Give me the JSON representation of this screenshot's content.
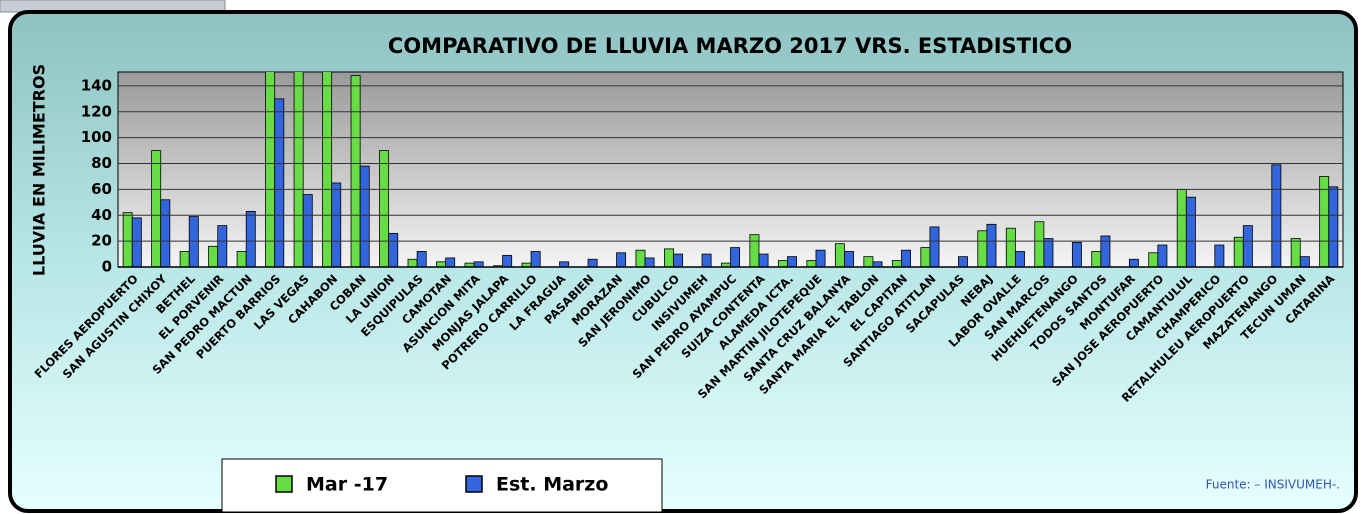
{
  "chart_data": {
    "type": "bar",
    "title": "COMPARATIVO DE LLUVIA MARZO 2017 VRS. ESTADISTICO",
    "y_label": "LLUVIA EN MILIMETROS",
    "source": "Fuente: – INSIVUMEH-.",
    "categories": [
      "FLORES AEROPUERTO",
      "SAN AGUSTIN CHIXOY",
      "BETHEL",
      "EL PORVENIR",
      "SAN PEDRO MACTUN",
      "PUERTO BARRIOS",
      "LAS VEGAS",
      "CAHABON",
      "COBAN",
      "LA UNION",
      "ESQUIPULAS",
      "CAMOTAN",
      "ASUNCION MITA",
      "MONJAS JALAPA",
      "POTRERO CARRILLO",
      "LA FRAGUA",
      "PASABIEN",
      "MORAZAN",
      "SAN JERONIMO",
      "CUBULCO",
      "INSIVUMEH",
      "SAN PEDRO AYAMPUC",
      "SUIZA CONTENTA",
      "ALAMEDA ICTA.",
      "SAN MARTIN JILOTEPEQUE",
      "SANTA CRUZ BALANYA",
      "SANTA MARIA EL TABLON",
      "EL CAPITAN",
      "SANTIAGO ATITLAN",
      "SACAPULAS",
      "NEBAJ",
      "LABOR OVALLE",
      "SAN MARCOS",
      "HUEHUETENANGO",
      "TODOS SANTOS",
      "MONTUFAR",
      "SAN JOSE AEROPUERTO",
      "CAMANTULUL",
      "CHAMPERICO",
      "RETALHULEU AEROPUERTO",
      "MAZATENANGO",
      "TECUN UMAN",
      "CATARINA"
    ],
    "series": [
      {
        "name": "Mar -17",
        "color": "#66dd44",
        "values": [
          42,
          90,
          12,
          16,
          12,
          160,
          160,
          160,
          148,
          90,
          6,
          4,
          3,
          1,
          3,
          0,
          0,
          0,
          13,
          14,
          0,
          3,
          25,
          5,
          5,
          18,
          8,
          5,
          15,
          0,
          28,
          30,
          35,
          0,
          12,
          0,
          11,
          60,
          0,
          23,
          0,
          22,
          70
        ]
      },
      {
        "name": "Est. Marzo",
        "color": "#3366dd",
        "values": [
          38,
          52,
          39,
          32,
          43,
          130,
          56,
          65,
          78,
          26,
          12,
          7,
          4,
          9,
          12,
          4,
          6,
          11,
          7,
          10,
          10,
          15,
          10,
          8,
          13,
          12,
          4,
          13,
          31,
          8,
          33,
          12,
          22,
          19,
          24,
          6,
          17,
          54,
          17,
          32,
          79,
          8,
          62
        ]
      }
    ],
    "ylim": [
      0,
      150
    ],
    "yticks": [
      0,
      20,
      40,
      60,
      80,
      100,
      120,
      140
    ],
    "grid": true
  }
}
